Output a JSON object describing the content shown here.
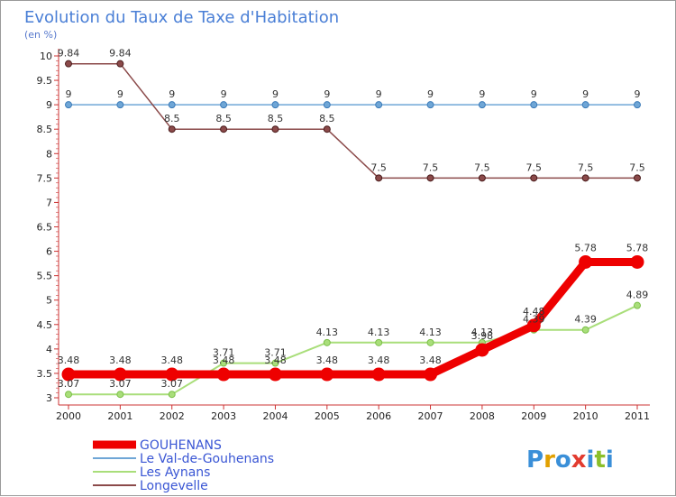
{
  "chart_data": {
    "type": "line",
    "title": "Evolution du Taux de Taxe d'Habitation",
    "subtitle": "(en %)",
    "xlabel": "",
    "ylabel": "",
    "categories": [
      "2000",
      "2001",
      "2002",
      "2003",
      "2004",
      "2005",
      "2006",
      "2007",
      "2008",
      "2009",
      "2010",
      "2011"
    ],
    "ylim": [
      3,
      10
    ],
    "yticks": [
      3,
      3.5,
      4,
      4.5,
      5,
      5.5,
      6,
      6.5,
      7,
      7.5,
      8,
      8.5,
      9,
      9.5,
      10
    ],
    "ytick_labels": [
      "3",
      "3.5",
      "4",
      "4.5",
      "5",
      "5.5",
      "6",
      "6.5",
      "7",
      "7.5",
      "8",
      "8.5",
      "9",
      "9.5",
      "10"
    ],
    "grid": false,
    "legend_position": "bottom-left",
    "series": [
      {
        "name": "GOUHENANS",
        "color": "#ee0000",
        "values": [
          3.48,
          3.48,
          3.48,
          3.48,
          3.48,
          3.48,
          3.48,
          3.48,
          3.98,
          4.48,
          5.78,
          5.78
        ],
        "labels": [
          "3.48",
          "3.48",
          "3.48",
          "3.48",
          "3.48",
          "3.48",
          "3.48",
          "3.48",
          "3.98",
          "4.48",
          "5.78",
          "5.78"
        ]
      },
      {
        "name": "Le Val-de-Gouhenans",
        "color": "#6fa6d6",
        "values": [
          9,
          9,
          9,
          9,
          9,
          9,
          9,
          9,
          9,
          9,
          9,
          9
        ],
        "labels": [
          "9",
          "9",
          "9",
          "9",
          "9",
          "9",
          "9",
          "9",
          "9",
          "9",
          "9",
          "9"
        ]
      },
      {
        "name": "Les Aynans",
        "color": "#a9de7a",
        "values": [
          3.07,
          3.07,
          3.07,
          3.71,
          3.71,
          4.13,
          4.13,
          4.13,
          4.13,
          4.39,
          4.39,
          4.89
        ],
        "labels": [
          "3.07",
          "3.07",
          "3.07",
          "3.71",
          "3.71",
          "4.13",
          "4.13",
          "4.13",
          "4.13",
          "4.39",
          "4.39",
          "4.89"
        ]
      },
      {
        "name": "Longevelle",
        "color": "#8b4a4a",
        "values": [
          9.84,
          9.84,
          8.5,
          8.5,
          8.5,
          8.5,
          7.5,
          7.5,
          7.5,
          7.5,
          7.5,
          7.5
        ],
        "labels": [
          "9.84",
          "9.84",
          "8.5",
          "8.5",
          "8.5",
          "8.5",
          "7.5",
          "7.5",
          "7.5",
          "7.5",
          "7.5",
          "7.5"
        ]
      }
    ]
  },
  "logo": {
    "text": "Proxiti"
  }
}
